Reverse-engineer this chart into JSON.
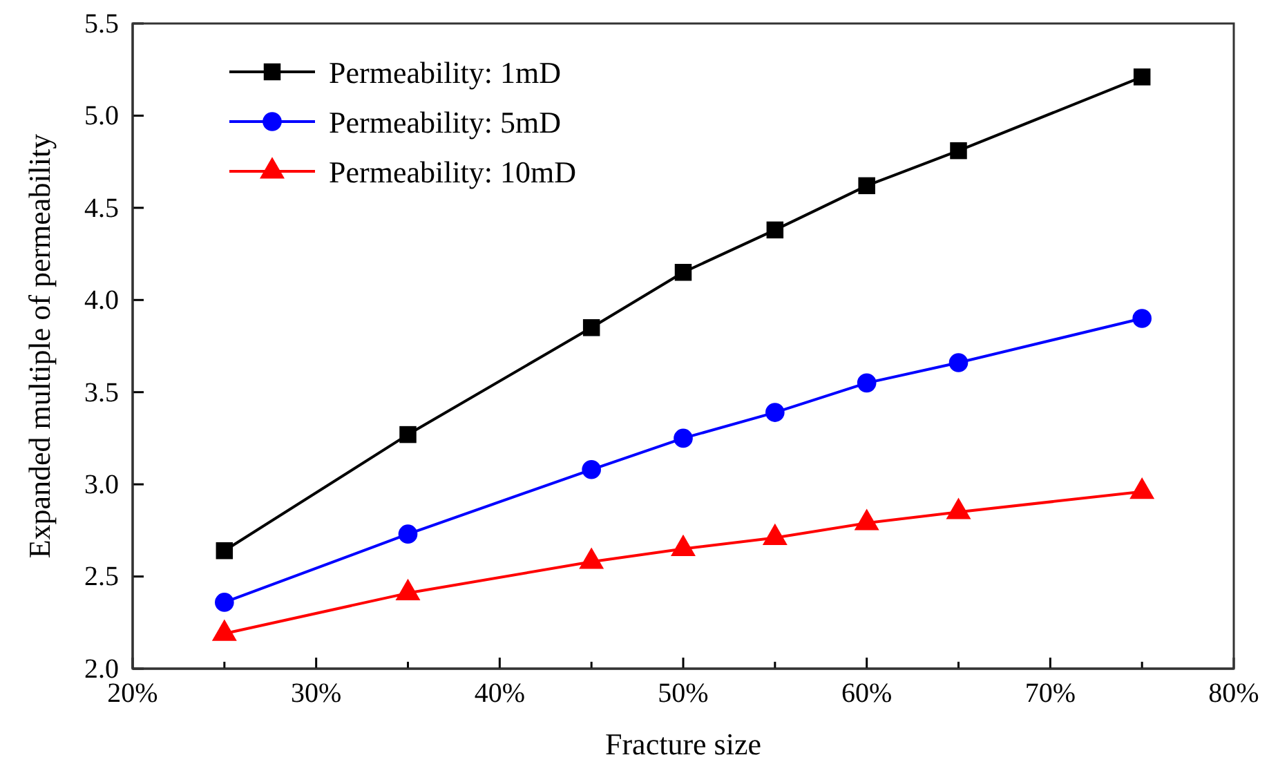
{
  "chart_data": {
    "type": "line",
    "xlabel": "Fracture size",
    "ylabel": "Expanded multiple of permeability",
    "xlim": [
      20,
      80
    ],
    "xticks": [
      {
        "value": 20,
        "label": "20%"
      },
      {
        "value": 25,
        "label": null
      },
      {
        "value": 30,
        "label": "30%"
      },
      {
        "value": 35,
        "label": null
      },
      {
        "value": 40,
        "label": "40%"
      },
      {
        "value": 45,
        "label": null
      },
      {
        "value": 50,
        "label": "50%"
      },
      {
        "value": 55,
        "label": null
      },
      {
        "value": 60,
        "label": "60%"
      },
      {
        "value": 65,
        "label": null
      },
      {
        "value": 70,
        "label": "70%"
      },
      {
        "value": 75,
        "label": null
      },
      {
        "value": 80,
        "label": "80%"
      }
    ],
    "ylim": [
      2.0,
      5.5
    ],
    "yticks": [
      {
        "value": 2.0,
        "label": "2.0"
      },
      {
        "value": 2.5,
        "label": "2.5"
      },
      {
        "value": 3.0,
        "label": "3.0"
      },
      {
        "value": 3.5,
        "label": "3.5"
      },
      {
        "value": 4.0,
        "label": "4.0"
      },
      {
        "value": 4.5,
        "label": "4.5"
      },
      {
        "value": 5.0,
        "label": "5.0"
      },
      {
        "value": 5.5,
        "label": "5.5"
      }
    ],
    "x": [
      25,
      35,
      45,
      50,
      55,
      60,
      65,
      75
    ],
    "legend": "top left",
    "grid": false,
    "series": [
      {
        "name": "Permeability: 1mD",
        "color": "#000000",
        "marker": "square",
        "values": [
          2.64,
          3.27,
          3.85,
          4.15,
          4.38,
          4.62,
          4.81,
          5.21
        ]
      },
      {
        "name": "Permeability: 5mD",
        "color": "#0000ff",
        "marker": "circle",
        "values": [
          2.36,
          2.73,
          3.08,
          3.25,
          3.39,
          3.55,
          3.66,
          3.9
        ]
      },
      {
        "name": "Permeability: 10mD",
        "color": "#ff0000",
        "marker": "triangle",
        "values": [
          2.19,
          2.41,
          2.58,
          2.65,
          2.71,
          2.79,
          2.85,
          2.96
        ]
      }
    ]
  }
}
